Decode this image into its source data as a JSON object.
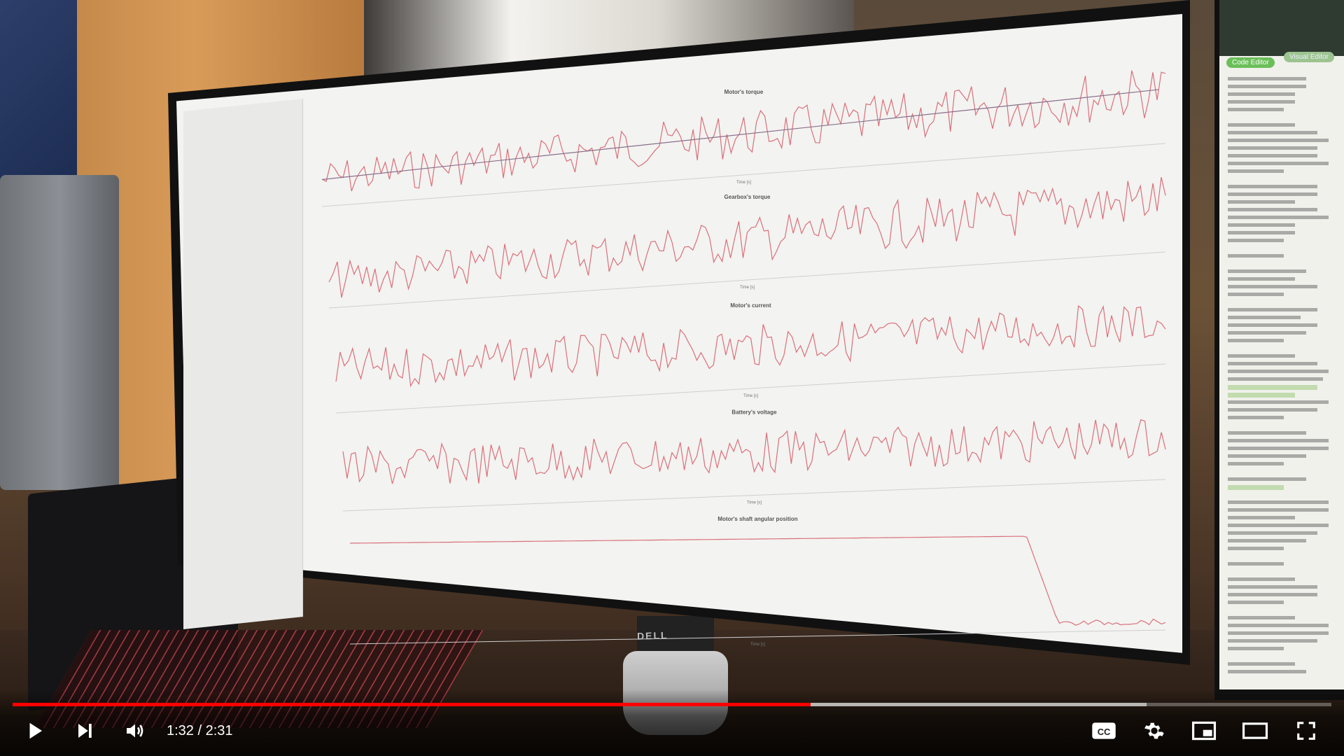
{
  "player": {
    "current_time": "1:32",
    "separator": " / ",
    "duration": "2:31",
    "progress_fraction": 0.605,
    "buffer_fraction": 0.86,
    "accent_color": "#ff0000"
  },
  "controls": {
    "play_icon": "play-icon",
    "next_icon": "next-icon",
    "volume_icon": "volume-icon",
    "captions_icon": "captions-icon",
    "settings_icon": "gear-icon",
    "miniplayer_icon": "miniplayer-icon",
    "theater_icon": "theater-icon",
    "fullscreen_icon": "fullscreen-icon"
  },
  "monitor": {
    "brand": "DELL"
  },
  "screen_app": {
    "plots": [
      {
        "title": "Motor's torque"
      },
      {
        "title": "Gearbox's torque"
      },
      {
        "title": "Motor's current"
      },
      {
        "title": "Battery's voltage"
      },
      {
        "title": "Motor's shaft angular position"
      }
    ],
    "x_axis_label": "Time [s]"
  },
  "right_screen": {
    "button_primary": "Code Editor",
    "button_secondary": "Visual Editor"
  }
}
